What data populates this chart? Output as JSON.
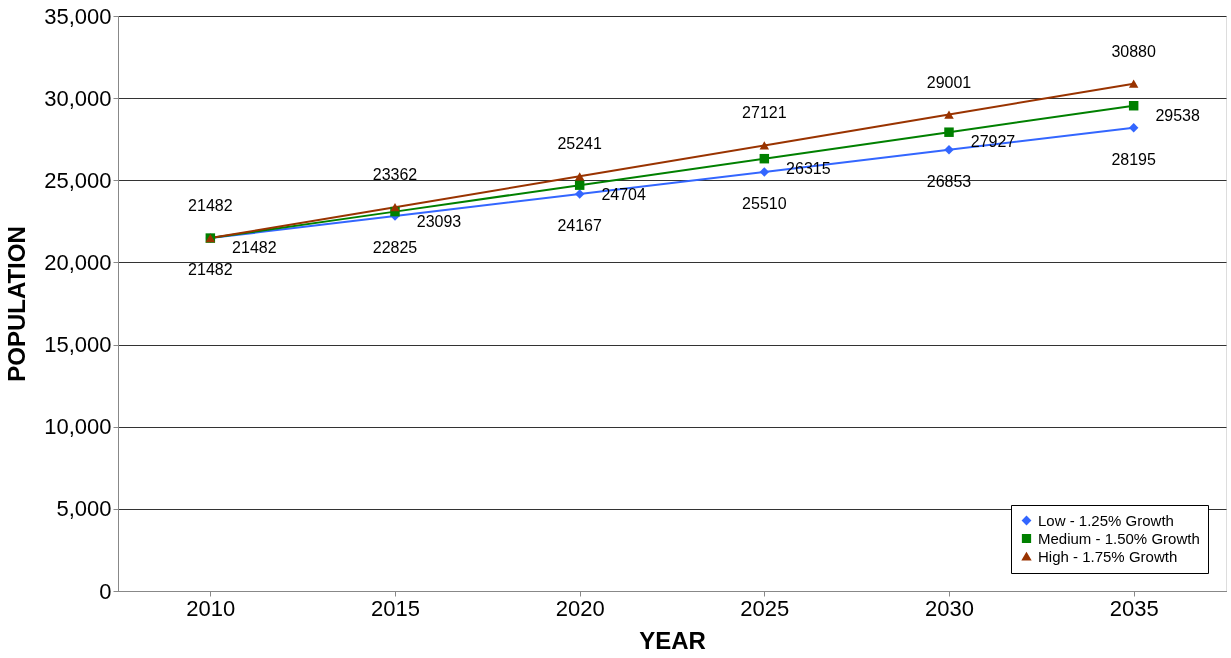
{
  "chart_data": {
    "type": "line",
    "xlabel": "YEAR",
    "ylabel": "POPULATION",
    "categories": [
      "2010",
      "2015",
      "2020",
      "2025",
      "2030",
      "2035"
    ],
    "series": [
      {
        "name": "Low - 1.25% Growth",
        "color": "#3366ff",
        "marker": "diamond",
        "values": [
          21482,
          22825,
          24167,
          25510,
          26853,
          28195
        ]
      },
      {
        "name": "Medium - 1.50% Growth",
        "color": "#008000",
        "marker": "square",
        "values": [
          21482,
          23093,
          24704,
          26315,
          27927,
          29538
        ]
      },
      {
        "name": "High - 1.75% Growth",
        "color": "#993300",
        "marker": "triangle",
        "values": [
          21482,
          23362,
          25241,
          27121,
          29001,
          30880
        ]
      }
    ],
    "ylim": [
      0,
      35000
    ],
    "yticks": [
      {
        "value": 0,
        "label": "0"
      },
      {
        "value": 5000,
        "label": "5,000"
      },
      {
        "value": 10000,
        "label": "10,000"
      },
      {
        "value": 15000,
        "label": "15,000"
      },
      {
        "value": 20000,
        "label": "20,000"
      },
      {
        "value": 25000,
        "label": "25,000"
      },
      {
        "value": 30000,
        "label": "30,000"
      },
      {
        "value": 35000,
        "label": "35,000"
      }
    ],
    "grid": "y",
    "legend": "bottom right",
    "data_labels": true,
    "line_style": "solid"
  }
}
